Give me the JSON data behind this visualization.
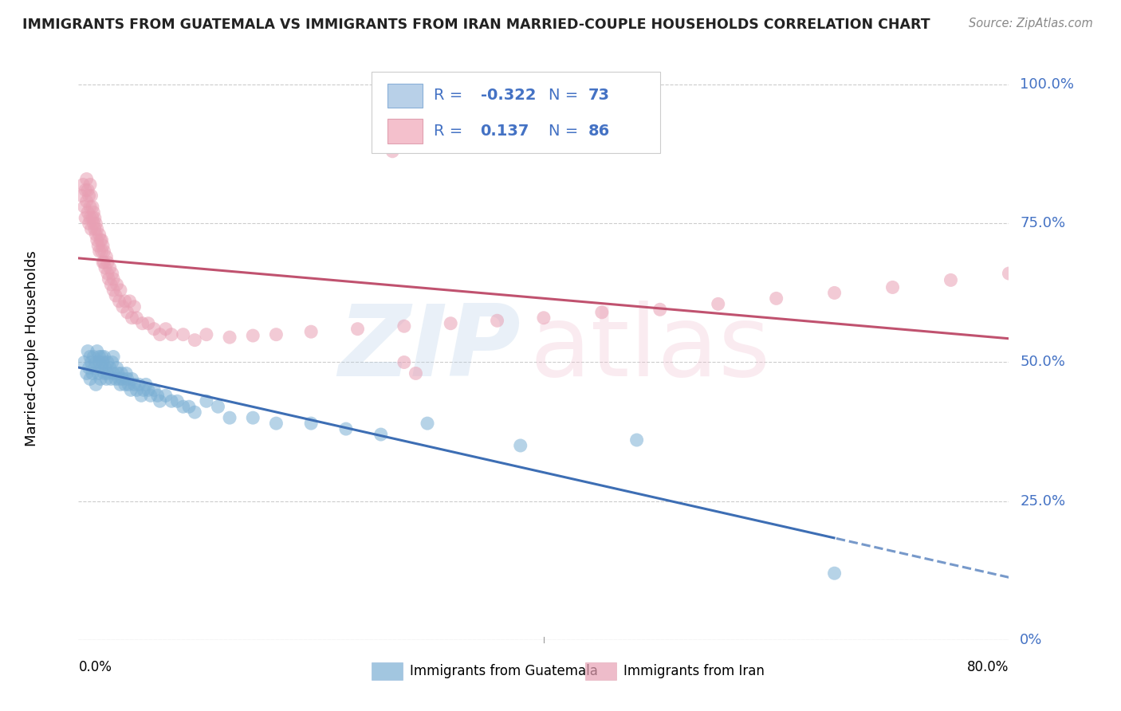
{
  "title": "IMMIGRANTS FROM GUATEMALA VS IMMIGRANTS FROM IRAN MARRIED-COUPLE HOUSEHOLDS CORRELATION CHART",
  "source": "Source: ZipAtlas.com",
  "ylabel": "Married-couple Households",
  "blue_color": "#7bafd4",
  "pink_color": "#e8a0b4",
  "blue_line_color": "#3d6eb4",
  "pink_line_color": "#c0526f",
  "legend_text_color": "#4472c4",
  "ytick_values": [
    0.0,
    0.25,
    0.5,
    0.75,
    1.0
  ],
  "ytick_labels": [
    "0%",
    "25.0%",
    "50.0%",
    "75.0%",
    "100.0%"
  ],
  "xlim_min": 0.0,
  "xlim_max": 0.8,
  "ylim_min": 0.0,
  "ylim_max": 1.05,
  "blue_r": "-0.322",
  "blue_n": "73",
  "pink_r": "0.137",
  "pink_n": "86",
  "guatemala_x": [
    0.005,
    0.007,
    0.008,
    0.009,
    0.01,
    0.01,
    0.011,
    0.012,
    0.013,
    0.014,
    0.015,
    0.015,
    0.016,
    0.017,
    0.018,
    0.018,
    0.019,
    0.02,
    0.02,
    0.021,
    0.022,
    0.022,
    0.023,
    0.024,
    0.025,
    0.025,
    0.027,
    0.028,
    0.029,
    0.03,
    0.03,
    0.032,
    0.033,
    0.034,
    0.035,
    0.036,
    0.037,
    0.038,
    0.04,
    0.041,
    0.042,
    0.043,
    0.045,
    0.046,
    0.048,
    0.05,
    0.052,
    0.054,
    0.056,
    0.058,
    0.06,
    0.062,
    0.065,
    0.068,
    0.07,
    0.075,
    0.08,
    0.085,
    0.09,
    0.095,
    0.1,
    0.11,
    0.12,
    0.13,
    0.15,
    0.17,
    0.2,
    0.23,
    0.26,
    0.3,
    0.38,
    0.48,
    0.65
  ],
  "guatemala_y": [
    0.5,
    0.48,
    0.52,
    0.49,
    0.51,
    0.47,
    0.5,
    0.48,
    0.51,
    0.49,
    0.5,
    0.46,
    0.52,
    0.48,
    0.5,
    0.51,
    0.47,
    0.49,
    0.51,
    0.5,
    0.48,
    0.51,
    0.49,
    0.47,
    0.5,
    0.48,
    0.49,
    0.47,
    0.5,
    0.48,
    0.51,
    0.47,
    0.49,
    0.48,
    0.47,
    0.46,
    0.48,
    0.47,
    0.46,
    0.48,
    0.47,
    0.46,
    0.45,
    0.47,
    0.46,
    0.45,
    0.46,
    0.44,
    0.45,
    0.46,
    0.45,
    0.44,
    0.45,
    0.44,
    0.43,
    0.44,
    0.43,
    0.43,
    0.42,
    0.42,
    0.41,
    0.43,
    0.42,
    0.4,
    0.4,
    0.39,
    0.39,
    0.38,
    0.37,
    0.39,
    0.35,
    0.36,
    0.12
  ],
  "iran_x": [
    0.003,
    0.004,
    0.005,
    0.006,
    0.006,
    0.007,
    0.007,
    0.008,
    0.008,
    0.009,
    0.009,
    0.01,
    0.01,
    0.01,
    0.011,
    0.011,
    0.012,
    0.012,
    0.013,
    0.013,
    0.014,
    0.014,
    0.015,
    0.015,
    0.016,
    0.016,
    0.017,
    0.018,
    0.018,
    0.019,
    0.02,
    0.02,
    0.021,
    0.021,
    0.022,
    0.022,
    0.023,
    0.024,
    0.025,
    0.025,
    0.026,
    0.027,
    0.028,
    0.029,
    0.03,
    0.03,
    0.032,
    0.033,
    0.035,
    0.036,
    0.038,
    0.04,
    0.042,
    0.044,
    0.046,
    0.048,
    0.05,
    0.055,
    0.06,
    0.065,
    0.07,
    0.075,
    0.08,
    0.09,
    0.1,
    0.11,
    0.13,
    0.15,
    0.17,
    0.2,
    0.24,
    0.28,
    0.32,
    0.36,
    0.4,
    0.45,
    0.5,
    0.55,
    0.6,
    0.65,
    0.7,
    0.75,
    0.8,
    0.27,
    0.28,
    0.29
  ],
  "iran_y": [
    0.8,
    0.82,
    0.78,
    0.81,
    0.76,
    0.83,
    0.79,
    0.77,
    0.81,
    0.75,
    0.8,
    0.78,
    0.76,
    0.82,
    0.74,
    0.8,
    0.76,
    0.78,
    0.75,
    0.77,
    0.74,
    0.76,
    0.73,
    0.75,
    0.72,
    0.74,
    0.71,
    0.73,
    0.7,
    0.72,
    0.7,
    0.72,
    0.68,
    0.71,
    0.68,
    0.7,
    0.67,
    0.69,
    0.66,
    0.68,
    0.65,
    0.67,
    0.64,
    0.66,
    0.63,
    0.65,
    0.62,
    0.64,
    0.61,
    0.63,
    0.6,
    0.61,
    0.59,
    0.61,
    0.58,
    0.6,
    0.58,
    0.57,
    0.57,
    0.56,
    0.55,
    0.56,
    0.55,
    0.55,
    0.54,
    0.55,
    0.545,
    0.548,
    0.55,
    0.555,
    0.56,
    0.565,
    0.57,
    0.575,
    0.58,
    0.59,
    0.595,
    0.605,
    0.615,
    0.625,
    0.635,
    0.648,
    0.66,
    0.88,
    0.5,
    0.48
  ]
}
